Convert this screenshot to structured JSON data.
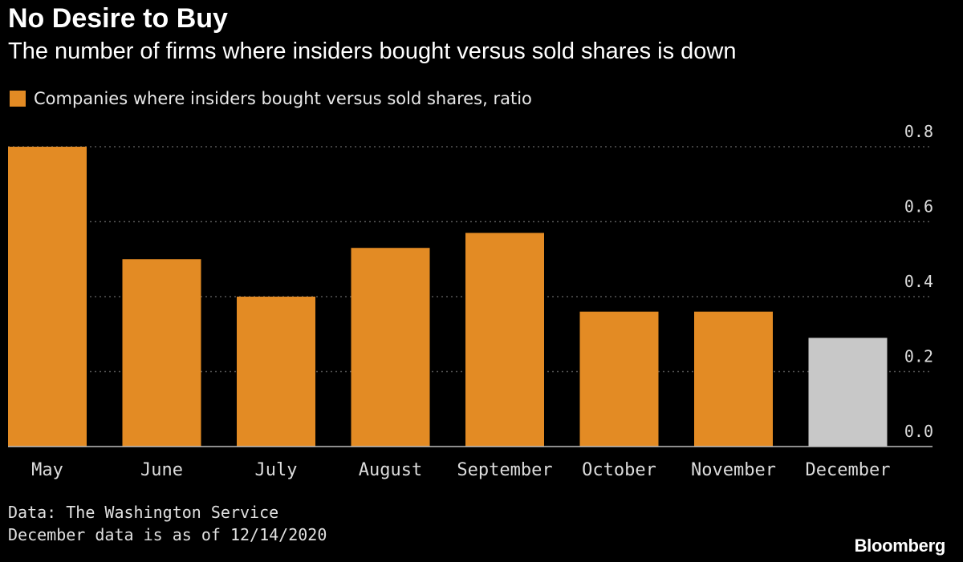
{
  "header": {
    "title": "No Desire to Buy",
    "subtitle": "The number of firms where insiders bought versus sold shares is down"
  },
  "legend": {
    "label": "Companies where insiders bought versus sold shares, ratio",
    "color": "#e38b24"
  },
  "footer": {
    "source": "Data: The Washington Service",
    "note": "December data is as of 12/14/2020",
    "brand": "Bloomberg"
  },
  "colors": {
    "bar": "#e38b24",
    "bar_partial": "#c8c8c8",
    "grid": "#555555",
    "tick_text": "#dcdcdc",
    "background": "#000000"
  },
  "chart_data": {
    "type": "bar",
    "title": "No Desire to Buy",
    "subtitle": "The number of firms where insiders bought versus sold shares is down",
    "categories": [
      "May",
      "June",
      "July",
      "August",
      "September",
      "October",
      "November",
      "December"
    ],
    "series": [
      {
        "name": "Companies where insiders bought versus sold shares, ratio",
        "values": [
          0.8,
          0.5,
          0.4,
          0.53,
          0.57,
          0.36,
          0.36,
          0.29
        ]
      }
    ],
    "highlight": {
      "December": "partial month"
    },
    "ylim": [
      0,
      0.8
    ],
    "yticks": [
      "0.0",
      "0.2",
      "0.4",
      "0.6",
      "0.8"
    ],
    "ytick_values": [
      0,
      0.2,
      0.4,
      0.6,
      0.8
    ],
    "y_axis_side": "right",
    "grid": true,
    "legend_position": "top-left",
    "xlabel": "",
    "ylabel": ""
  }
}
